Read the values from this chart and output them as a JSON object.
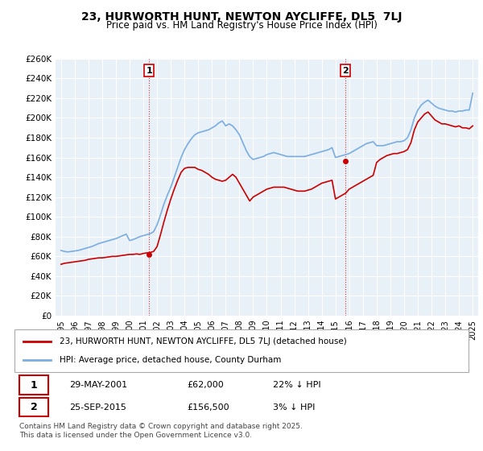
{
  "title": "23, HURWORTH HUNT, NEWTON AYCLIFFE, DL5  7LJ",
  "subtitle": "Price paid vs. HM Land Registry's House Price Index (HPI)",
  "legend_label_red": "23, HURWORTH HUNT, NEWTON AYCLIFFE, DL5 7LJ (detached house)",
  "legend_label_blue": "HPI: Average price, detached house, County Durham",
  "sale1_label": "1",
  "sale1_date": "29-MAY-2001",
  "sale1_price": "£62,000",
  "sale1_pct": "22% ↓ HPI",
  "sale2_label": "2",
  "sale2_date": "25-SEP-2015",
  "sale2_price": "£156,500",
  "sale2_pct": "3% ↓ HPI",
  "footnote": "Contains HM Land Registry data © Crown copyright and database right 2025.\nThis data is licensed under the Open Government Licence v3.0.",
  "red_color": "#cc0000",
  "blue_color": "#7aade0",
  "blue_fill": "#ddeeff",
  "background_color": "#ffffff",
  "grid_color": "#cccccc",
  "ylim": [
    0,
    260000
  ],
  "yticks": [
    0,
    20000,
    40000,
    60000,
    80000,
    100000,
    120000,
    140000,
    160000,
    180000,
    200000,
    220000,
    240000,
    260000
  ],
  "ytick_labels": [
    "£0",
    "£20K",
    "£40K",
    "£60K",
    "£80K",
    "£100K",
    "£120K",
    "£140K",
    "£160K",
    "£180K",
    "£200K",
    "£220K",
    "£240K",
    "£260K"
  ],
  "hpi_years": [
    1995.0,
    1995.25,
    1995.5,
    1995.75,
    1996.0,
    1996.25,
    1996.5,
    1996.75,
    1997.0,
    1997.25,
    1997.5,
    1997.75,
    1998.0,
    1998.25,
    1998.5,
    1998.75,
    1999.0,
    1999.25,
    1999.5,
    1999.75,
    2000.0,
    2000.25,
    2000.5,
    2000.75,
    2001.0,
    2001.25,
    2001.5,
    2001.75,
    2002.0,
    2002.25,
    2002.5,
    2002.75,
    2003.0,
    2003.25,
    2003.5,
    2003.75,
    2004.0,
    2004.25,
    2004.5,
    2004.75,
    2005.0,
    2005.25,
    2005.5,
    2005.75,
    2006.0,
    2006.25,
    2006.5,
    2006.75,
    2007.0,
    2007.25,
    2007.5,
    2007.75,
    2008.0,
    2008.25,
    2008.5,
    2008.75,
    2009.0,
    2009.25,
    2009.5,
    2009.75,
    2010.0,
    2010.25,
    2010.5,
    2010.75,
    2011.0,
    2011.25,
    2011.5,
    2011.75,
    2012.0,
    2012.25,
    2012.5,
    2012.75,
    2013.0,
    2013.25,
    2013.5,
    2013.75,
    2014.0,
    2014.25,
    2014.5,
    2014.75,
    2015.0,
    2015.25,
    2015.5,
    2015.75,
    2016.0,
    2016.25,
    2016.5,
    2016.75,
    2017.0,
    2017.25,
    2017.5,
    2017.75,
    2018.0,
    2018.25,
    2018.5,
    2018.75,
    2019.0,
    2019.25,
    2019.5,
    2019.75,
    2020.0,
    2020.25,
    2020.5,
    2020.75,
    2021.0,
    2021.25,
    2021.5,
    2021.75,
    2022.0,
    2022.25,
    2022.5,
    2022.75,
    2023.0,
    2023.25,
    2023.5,
    2023.75,
    2024.0,
    2024.25,
    2024.5,
    2024.75,
    2025.0
  ],
  "hpi_values": [
    66000,
    65000,
    64500,
    65000,
    65500,
    66000,
    67000,
    68000,
    69000,
    70000,
    71500,
    73000,
    74000,
    75000,
    76000,
    77000,
    78000,
    79500,
    81000,
    82500,
    76000,
    77000,
    78500,
    80000,
    81000,
    82000,
    83000,
    85000,
    92000,
    102000,
    113000,
    122000,
    130000,
    140000,
    150000,
    160000,
    168000,
    174000,
    179000,
    183000,
    185000,
    186000,
    187000,
    188000,
    190000,
    192000,
    195000,
    197000,
    192000,
    194000,
    192000,
    188000,
    183000,
    175000,
    167000,
    161000,
    158000,
    159000,
    160000,
    161000,
    163000,
    164000,
    165000,
    164000,
    163000,
    162000,
    161000,
    161000,
    161000,
    161000,
    161000,
    161000,
    162000,
    163000,
    164000,
    165000,
    166000,
    167000,
    168000,
    170000,
    160000,
    161000,
    162000,
    163000,
    164000,
    166000,
    168000,
    170000,
    172000,
    174000,
    175000,
    176000,
    172000,
    172000,
    172000,
    173000,
    174000,
    175000,
    176000,
    176000,
    177000,
    180000,
    188000,
    200000,
    208000,
    213000,
    216000,
    218000,
    215000,
    212000,
    210000,
    209000,
    208000,
    207000,
    207000,
    206000,
    207000,
    207000,
    208000,
    208000,
    225000
  ],
  "red_years": [
    1995.0,
    1995.25,
    1995.5,
    1995.75,
    1996.0,
    1996.25,
    1996.5,
    1996.75,
    1997.0,
    1997.25,
    1997.5,
    1997.75,
    1998.0,
    1998.25,
    1998.5,
    1998.75,
    1999.0,
    1999.25,
    1999.5,
    1999.75,
    2000.0,
    2000.25,
    2000.5,
    2000.75,
    2001.0,
    2001.25,
    2001.5,
    2001.75,
    2002.0,
    2002.25,
    2002.5,
    2002.75,
    2003.0,
    2003.25,
    2003.5,
    2003.75,
    2004.0,
    2004.25,
    2004.5,
    2004.75,
    2005.0,
    2005.25,
    2005.5,
    2005.75,
    2006.0,
    2006.25,
    2006.5,
    2006.75,
    2007.0,
    2007.25,
    2007.5,
    2007.75,
    2008.0,
    2008.25,
    2008.5,
    2008.75,
    2009.0,
    2009.25,
    2009.5,
    2009.75,
    2010.0,
    2010.25,
    2010.5,
    2010.75,
    2011.0,
    2011.25,
    2011.5,
    2011.75,
    2012.0,
    2012.25,
    2012.5,
    2012.75,
    2013.0,
    2013.25,
    2013.5,
    2013.75,
    2014.0,
    2014.25,
    2014.5,
    2014.75,
    2015.0,
    2015.25,
    2015.5,
    2015.75,
    2016.0,
    2016.25,
    2016.5,
    2016.75,
    2017.0,
    2017.25,
    2017.5,
    2017.75,
    2018.0,
    2018.25,
    2018.5,
    2018.75,
    2019.0,
    2019.25,
    2019.5,
    2019.75,
    2020.0,
    2020.25,
    2020.5,
    2020.75,
    2021.0,
    2021.25,
    2021.5,
    2021.75,
    2022.0,
    2022.25,
    2022.5,
    2022.75,
    2023.0,
    2023.25,
    2023.5,
    2023.75,
    2024.0,
    2024.25,
    2024.5,
    2024.75,
    2025.0
  ],
  "red_values": [
    52000,
    53000,
    53500,
    54000,
    54500,
    55000,
    55500,
    56000,
    57000,
    57500,
    58000,
    58500,
    58500,
    59000,
    59500,
    60000,
    60000,
    60500,
    61000,
    61500,
    62000,
    62000,
    62500,
    62000,
    63000,
    63500,
    64000,
    65000,
    70000,
    82000,
    95000,
    107000,
    118000,
    128000,
    137000,
    145000,
    149000,
    150000,
    150000,
    150000,
    148000,
    147000,
    145000,
    143000,
    140000,
    138000,
    137000,
    136000,
    137000,
    140000,
    143000,
    140000,
    134000,
    128000,
    122000,
    116000,
    120000,
    122000,
    124000,
    126000,
    128000,
    129000,
    130000,
    130000,
    130000,
    130000,
    129000,
    128000,
    127000,
    126000,
    126000,
    126000,
    127000,
    128000,
    130000,
    132000,
    134000,
    135000,
    136000,
    137000,
    118000,
    120000,
    122000,
    124000,
    128000,
    130000,
    132000,
    134000,
    136000,
    138000,
    140000,
    142000,
    155000,
    158000,
    160000,
    162000,
    163000,
    164000,
    164000,
    165000,
    166000,
    168000,
    175000,
    188000,
    196000,
    200000,
    204000,
    206000,
    202000,
    198000,
    196000,
    194000,
    194000,
    193000,
    192000,
    191000,
    192000,
    190000,
    190000,
    189000,
    192000
  ],
  "sale1_x": 2001.42,
  "sale1_y": 62000,
  "sale2_x": 2015.73,
  "sale2_y": 156500,
  "xlim_left": 1994.6,
  "xlim_right": 2025.4,
  "xticks": [
    1995,
    1996,
    1997,
    1998,
    1999,
    2000,
    2001,
    2002,
    2003,
    2004,
    2005,
    2006,
    2007,
    2008,
    2009,
    2010,
    2011,
    2012,
    2013,
    2014,
    2015,
    2016,
    2017,
    2018,
    2019,
    2020,
    2021,
    2022,
    2023,
    2024,
    2025
  ]
}
